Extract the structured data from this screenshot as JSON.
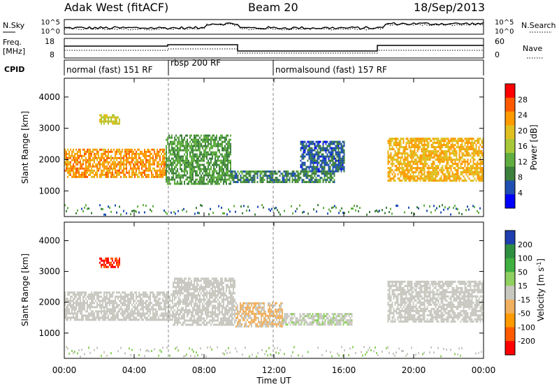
{
  "header": {
    "title": "Adak West (fitACF)",
    "beam": "Beam 20",
    "date": "18/Sep/2013"
  },
  "noise_panel": {
    "left_label": "N.Sky",
    "right_label": "N.Search",
    "left_ticks": [
      "10^5",
      "10^0"
    ],
    "right_ticks": [
      "10^5",
      "10^0"
    ]
  },
  "freq_panel": {
    "left_label": "Freq.",
    "left_unit": "[MHz]",
    "left_ticks": [
      "18",
      "8"
    ],
    "right_label": "Nave",
    "right_ticks": [
      "60",
      "0"
    ]
  },
  "cpid_panel": {
    "label": "CPID",
    "segments": [
      {
        "label": "normal (fast) 151 RF",
        "start": 0,
        "end": 6
      },
      {
        "label": "rbsp 200 RF",
        "start": 6,
        "end": 12
      },
      {
        "label": "normalsound (fast) 157 RF",
        "start": 12,
        "end": 24
      }
    ]
  },
  "colors": {
    "power_scale": [
      "#0000ff",
      "#1f4fb0",
      "#3d7f3d",
      "#5fae3f",
      "#a8c83a",
      "#e0c020",
      "#ff9a00",
      "#ff5a00",
      "#ff0000"
    ],
    "velocity_scale": [
      "#ff0000",
      "#ff5a00",
      "#ff9a00",
      "#f0b060",
      "#c8c8c0",
      "#8fd060",
      "#40b040",
      "#2f8f40",
      "#1f3fb0"
    ]
  },
  "chart_data": [
    {
      "type": "heatmap",
      "title": "",
      "xlabel": "Time UT",
      "ylabel": "Slant Range [km]",
      "x_ticks": [
        "00:00",
        "04:00",
        "08:00",
        "12:00",
        "16:00",
        "20:00",
        "00:00"
      ],
      "xlim": [
        0,
        24
      ],
      "y_ticks": [
        "1000",
        "2000",
        "3000",
        "4000"
      ],
      "ylim": [
        180,
        4600
      ],
      "colorbar": {
        "label": "Power [dB]",
        "ticks": [
          "4",
          "8",
          "12",
          "16",
          "20",
          "24",
          "28"
        ],
        "range": [
          0,
          32
        ]
      },
      "regions": [
        {
          "t0": 0.0,
          "t1": 5.8,
          "r0": 1450,
          "r1": 2350,
          "value": 24
        },
        {
          "t0": 5.8,
          "t1": 9.5,
          "r0": 1200,
          "r1": 2800,
          "value": 10
        },
        {
          "t0": 9.5,
          "t1": 15.5,
          "r0": 1250,
          "r1": 1650,
          "value": 8
        },
        {
          "t0": 13.5,
          "t1": 16.0,
          "r0": 1600,
          "r1": 2600,
          "value": 5
        },
        {
          "t0": 18.5,
          "t1": 24.0,
          "r0": 1350,
          "r1": 2700,
          "value": 22
        },
        {
          "t0": 2.0,
          "t1": 3.2,
          "r0": 3150,
          "r1": 3450,
          "value": 18
        }
      ]
    },
    {
      "type": "heatmap",
      "title": "",
      "xlabel": "Time UT",
      "ylabel": "Slant Range [km]",
      "x_ticks": [
        "00:00",
        "04:00",
        "08:00",
        "12:00",
        "16:00",
        "20:00",
        "00:00"
      ],
      "xlim": [
        0,
        24
      ],
      "y_ticks": [
        "1000",
        "2000",
        "3000",
        "4000"
      ],
      "ylim": [
        180,
        4600
      ],
      "colorbar": {
        "label": "Velocity [m s^-1]",
        "ticks": [
          "200",
          "100",
          "50",
          "15",
          "-15",
          "-50",
          "-100",
          "-200"
        ],
        "range": [
          -250,
          250
        ]
      },
      "regions": [
        {
          "t0": 0.0,
          "t1": 6.2,
          "r0": 1400,
          "r1": 2350,
          "value": 0
        },
        {
          "t0": 6.2,
          "t1": 9.8,
          "r0": 1300,
          "r1": 2800,
          "value": 0
        },
        {
          "t0": 9.8,
          "t1": 12.5,
          "r0": 1250,
          "r1": 2000,
          "value": -40
        },
        {
          "t0": 12.5,
          "t1": 16.5,
          "r0": 1300,
          "r1": 1650,
          "value": 20
        },
        {
          "t0": 18.5,
          "t1": 24.0,
          "r0": 1350,
          "r1": 2700,
          "value": 0
        },
        {
          "t0": 2.0,
          "t1": 3.2,
          "r0": 3150,
          "r1": 3450,
          "value": -220
        }
      ]
    }
  ]
}
